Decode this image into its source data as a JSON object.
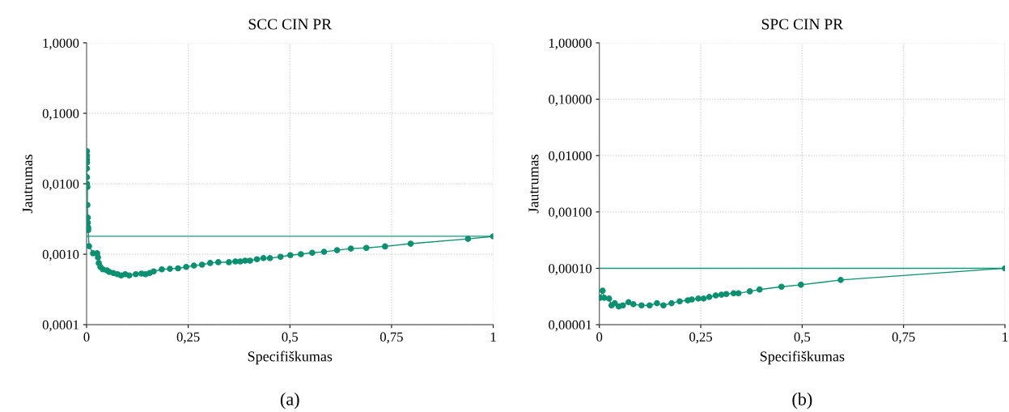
{
  "chart_data": [
    {
      "type": "line",
      "title": "SCC CIN PR",
      "xlabel": "Specifiškumas",
      "ylabel": "Jautrumas",
      "log": "y",
      "grid": true,
      "marker": "circle",
      "line_style": "solid",
      "xlim": [
        0,
        1
      ],
      "xticks": [
        0,
        {
          "value": 0.25,
          "label": "0,25"
        },
        {
          "value": 0.5,
          "label": "0,5"
        },
        {
          "value": 0.75,
          "label": "0,75"
        },
        1
      ],
      "ylim": [
        0.0001,
        1
      ],
      "yticks": [
        {
          "value": 0.0001,
          "label": "0,0001"
        },
        {
          "value": 0.001,
          "label": "0,0010"
        },
        {
          "value": 0.01,
          "label": "0,0100"
        },
        {
          "value": 0.1,
          "label": "0,1000"
        },
        {
          "value": 1,
          "label": "1,0000"
        }
      ],
      "ref_lines": [
        {
          "axis": "y",
          "value": 0.0018,
          "label": null,
          "color": "#139a7c"
        }
      ],
      "annotations": [
        "(a)"
      ],
      "series": [
        {
          "color": "#0a9170",
          "x": [
            0.001,
            0.001,
            0.001,
            0.001,
            0.001,
            0.001,
            0.001,
            0.002,
            0.002,
            0.003,
            0.003,
            0.004,
            0.004,
            0.006,
            0.016,
            0.026,
            0.028,
            0.03,
            0.034,
            0.04,
            0.05,
            0.056,
            0.066,
            0.076,
            0.085,
            0.095,
            0.105,
            0.121,
            0.135,
            0.145,
            0.155,
            0.165,
            0.185,
            0.205,
            0.225,
            0.245,
            0.264,
            0.284,
            0.304,
            0.324,
            0.35,
            0.366,
            0.378,
            0.39,
            0.402,
            0.419,
            0.435,
            0.451,
            0.477,
            0.501,
            0.527,
            0.555,
            0.584,
            0.616,
            0.65,
            0.688,
            0.734,
            0.797,
            0.938,
            1
          ],
          "values": [
            0.029,
            0.025,
            0.022,
            0.02,
            0.0165,
            0.0124,
            0.01,
            0.009,
            0.005,
            0.0033,
            0.0028,
            0.0024,
            0.0022,
            0.0013,
            0.00103,
            0.00103,
            0.0009,
            0.00075,
            0.00066,
            0.00061,
            0.00059,
            0.00056,
            0.00054,
            0.00052,
            0.0005,
            0.00052,
            0.0005,
            0.00052,
            0.00053,
            0.00052,
            0.00054,
            0.00057,
            0.00061,
            0.00062,
            0.00063,
            0.00066,
            0.00069,
            0.00071,
            0.00075,
            0.00077,
            0.00077,
            0.00079,
            0.00079,
            0.00081,
            0.00081,
            0.00085,
            0.00088,
            0.00088,
            0.00092,
            0.00097,
            0.001,
            0.00105,
            0.00108,
            0.00114,
            0.0012,
            0.00123,
            0.00129,
            0.00141,
            0.00165,
            0.00179
          ]
        }
      ]
    },
    {
      "type": "line",
      "title": "SPC CIN PR",
      "xlabel": "Specifiškumas",
      "ylabel": "Jautrumas",
      "log": "y",
      "grid": true,
      "marker": "circle",
      "line_style": "solid",
      "xlim": [
        0,
        1
      ],
      "xticks": [
        0,
        {
          "value": 0.25,
          "label": "0,25"
        },
        {
          "value": 0.5,
          "label": "0,5"
        },
        {
          "value": 0.75,
          "label": "0,75"
        },
        1
      ],
      "ylim": [
        1e-05,
        1
      ],
      "yticks": [
        {
          "value": 1e-05,
          "label": "0,00001"
        },
        {
          "value": 0.0001,
          "label": "0,00010"
        },
        {
          "value": 0.001,
          "label": "0,00100"
        },
        {
          "value": 0.01,
          "label": "0,01000"
        },
        {
          "value": 0.1,
          "label": "0,10000"
        },
        {
          "value": 1,
          "label": "1,00000"
        }
      ],
      "ref_lines": [
        {
          "axis": "y",
          "value": 0.0001,
          "label": null,
          "color": "#139a7c"
        }
      ],
      "annotations": [
        "(b)"
      ],
      "series": [
        {
          "color": "#0a9170",
          "x": [
            0.002,
            0.008,
            0.012,
            0.024,
            0.03,
            0.038,
            0.048,
            0.058,
            0.072,
            0.084,
            0.104,
            0.124,
            0.142,
            0.158,
            0.178,
            0.198,
            0.218,
            0.228,
            0.244,
            0.257,
            0.271,
            0.287,
            0.301,
            0.313,
            0.331,
            0.343,
            0.371,
            0.395,
            0.449,
            0.497,
            0.595,
            1
          ],
          "values": [
            3e-05,
            4e-05,
            3e-05,
            2.9e-05,
            2.2e-05,
            2.4e-05,
            2.1e-05,
            2.2e-05,
            2.5e-05,
            2.3e-05,
            2.2e-05,
            2.2e-05,
            2.4e-05,
            2.2e-05,
            2.4e-05,
            2.6e-05,
            2.7e-05,
            2.8e-05,
            2.9e-05,
            2.9e-05,
            3.1e-05,
            3.3e-05,
            3.4e-05,
            3.5e-05,
            3.6e-05,
            3.6e-05,
            3.9e-05,
            4.2e-05,
            4.7e-05,
            5.1e-05,
            6.2e-05,
            0.0001
          ]
        }
      ]
    }
  ]
}
